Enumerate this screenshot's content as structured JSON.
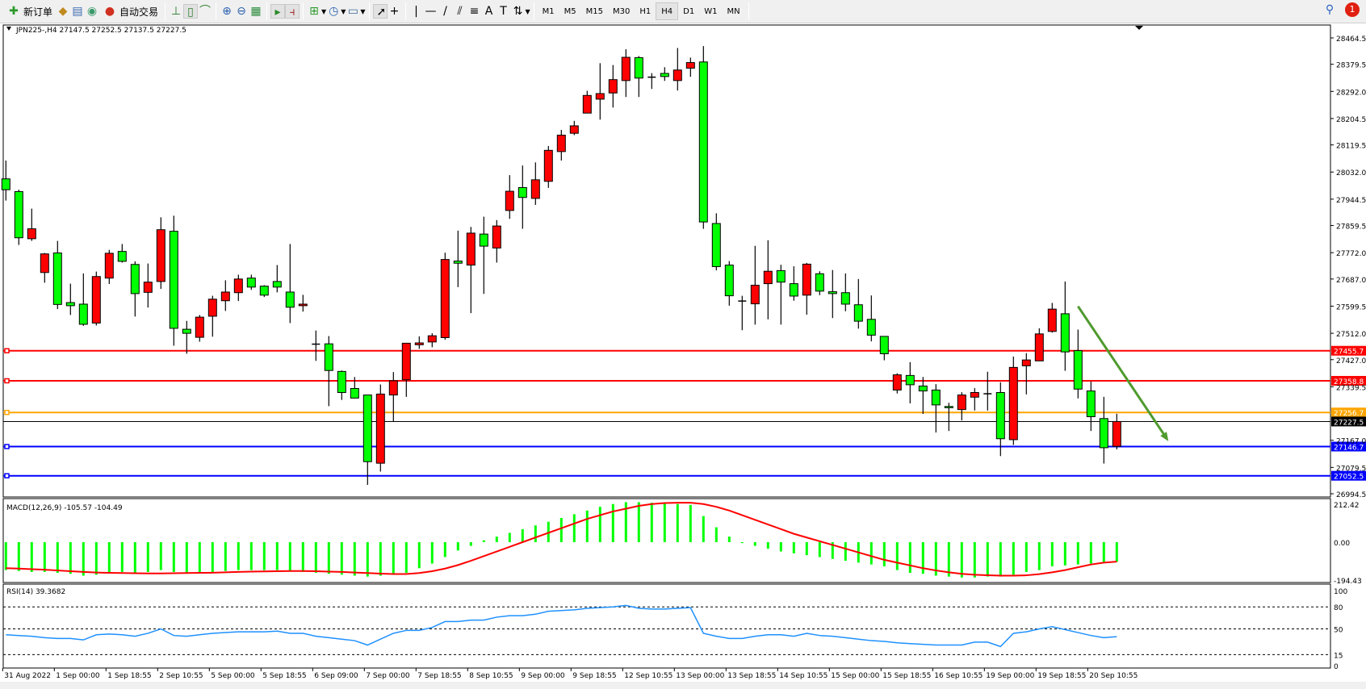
{
  "toolbar": {
    "new_order": "新订单",
    "auto_trading": "自动交易",
    "icons": [
      "new-order-icon",
      "market-watch-icon",
      "data-window-icon",
      "signals-icon",
      "auto-trading-icon",
      "bar-chart-icon",
      "candlestick-icon",
      "line-chart-icon",
      "zoom-in-icon",
      "zoom-out-icon",
      "tile-windows-icon",
      "autoscroll-icon",
      "chart-shift-icon",
      "indicators-icon",
      "periods-icon",
      "templates-icon",
      "cursor-icon",
      "crosshair-icon",
      "vertical-line-icon",
      "horizontal-line-icon",
      "trendline-icon",
      "equidistant-channel-icon",
      "fibonacci-icon",
      "text-icon",
      "text-label-icon",
      "arrows-icon"
    ],
    "timeframes": [
      "M1",
      "M5",
      "M15",
      "M30",
      "H1",
      "H4",
      "D1",
      "W1",
      "MN"
    ],
    "active_timeframe": "H4",
    "notification_count": "1"
  },
  "chart_data": {
    "type": "candlestick",
    "title": "JPN225-,H4  27147.5 27252.5 27137.5 27227.5",
    "symbol": "JPN225-",
    "timeframe": "H4",
    "ohlc_header": "27147.5 27252.5 27137.5 27227.5",
    "colors": {
      "bull": "#ff0000",
      "bear": "#00ff00",
      "background": "#ffffff"
    },
    "price_axis": {
      "range": [
        26994.5,
        28464.5
      ],
      "ticks": [
        "28464.5",
        "28379.5",
        "28292.0",
        "28204.5",
        "28119.5",
        "28032.0",
        "27944.5",
        "27859.5",
        "27772.0",
        "27687.0",
        "27599.5",
        "27512.0",
        "27427.0",
        "27339.5",
        "27167.0",
        "27079.5",
        "26994.5"
      ]
    },
    "time_labels": [
      "31 Aug 2022",
      "1 Sep 00:00",
      "1 Sep 18:55",
      "2 Sep 10:55",
      "5 Sep 00:00",
      "5 Sep 18:55",
      "6 Sep 09:00",
      "7 Sep 00:00",
      "7 Sep 18:55",
      "8 Sep 10:55",
      "9 Sep 00:00",
      "9 Sep 18:55",
      "12 Sep 10:55",
      "13 Sep 00:00",
      "13 Sep 18:55",
      "14 Sep 10:55",
      "15 Sep 00:00",
      "15 Sep 18:55",
      "16 Sep 10:55",
      "19 Sep 00:00",
      "19 Sep 18:55",
      "20 Sep 10:55"
    ],
    "candles_ohlc": [
      [
        28010,
        28069,
        27940,
        27975
      ],
      [
        27969,
        27975,
        27797,
        27820
      ],
      [
        27817,
        27914,
        27810,
        27849
      ],
      [
        27708,
        27771,
        27675,
        27768
      ],
      [
        27771,
        27810,
        27590,
        27605
      ],
      [
        27611,
        27672,
        27571,
        27601
      ],
      [
        27606,
        27705,
        27536,
        27541
      ],
      [
        27545,
        27711,
        27537,
        27695
      ],
      [
        27690,
        27781,
        27671,
        27770
      ],
      [
        27776,
        27800,
        27740,
        27744
      ],
      [
        27734,
        27744,
        27566,
        27640
      ],
      [
        27644,
        27737,
        27595,
        27677
      ],
      [
        27679,
        27886,
        27655,
        27846
      ],
      [
        27841,
        27891,
        27472,
        27528
      ],
      [
        27525,
        27552,
        27446,
        27512
      ],
      [
        27499,
        27571,
        27485,
        27564
      ],
      [
        27567,
        27633,
        27501,
        27622
      ],
      [
        27617,
        27683,
        27584,
        27645
      ],
      [
        27643,
        27701,
        27616,
        27687
      ],
      [
        27690,
        27701,
        27652,
        27661
      ],
      [
        27664,
        27667,
        27629,
        27635
      ],
      [
        27679,
        27732,
        27644,
        27661
      ],
      [
        27645,
        27800,
        27545,
        27596
      ],
      [
        27601,
        27636,
        27582,
        27606
      ],
      [
        27477,
        27521,
        27423,
        27477
      ],
      [
        27478,
        27503,
        27277,
        27392
      ],
      [
        27389,
        27392,
        27297,
        27321
      ],
      [
        27334,
        27371,
        27303,
        27303
      ],
      [
        27313,
        27313,
        27023,
        27098
      ],
      [
        27093,
        27347,
        27066,
        27316
      ],
      [
        27313,
        27387,
        27228,
        27359
      ],
      [
        27362,
        27480,
        27307,
        27480
      ],
      [
        27475,
        27502,
        27462,
        27481
      ],
      [
        27484,
        27512,
        27467,
        27504
      ],
      [
        27498,
        27772,
        27491,
        27750
      ],
      [
        27745,
        27843,
        27661,
        27738
      ],
      [
        27732,
        27855,
        27577,
        27835
      ],
      [
        27832,
        27888,
        27639,
        27793
      ],
      [
        27787,
        27877,
        27740,
        27858
      ],
      [
        27908,
        28022,
        27881,
        27970
      ],
      [
        27982,
        28053,
        27849,
        27950
      ],
      [
        27947,
        28063,
        27926,
        28007
      ],
      [
        28002,
        28116,
        27981,
        28102
      ],
      [
        28098,
        28168,
        28069,
        28151
      ],
      [
        28157,
        28197,
        28151,
        28181
      ],
      [
        28222,
        28294,
        28222,
        28279
      ],
      [
        28267,
        28383,
        28201,
        28285
      ],
      [
        28287,
        28377,
        28240,
        28330
      ],
      [
        28327,
        28428,
        28274,
        28402
      ],
      [
        28401,
        28406,
        28274,
        28335
      ],
      [
        28338,
        28351,
        28300,
        28338
      ],
      [
        28350,
        28370,
        28326,
        28340
      ],
      [
        28327,
        28432,
        28295,
        28361
      ],
      [
        28367,
        28401,
        28339,
        28385
      ],
      [
        28387,
        28438,
        27849,
        27871
      ],
      [
        27866,
        27899,
        27715,
        27727
      ],
      [
        27732,
        27745,
        27601,
        27633
      ],
      [
        27616,
        27633,
        27522,
        27616
      ],
      [
        27607,
        27794,
        27540,
        27667
      ],
      [
        27672,
        27812,
        27557,
        27712
      ],
      [
        27714,
        27733,
        27540,
        27677
      ],
      [
        27672,
        27728,
        27617,
        27632
      ],
      [
        27635,
        27739,
        27572,
        27735
      ],
      [
        27704,
        27712,
        27635,
        27648
      ],
      [
        27646,
        27716,
        27561,
        27640
      ],
      [
        27643,
        27705,
        27583,
        27606
      ],
      [
        27604,
        27687,
        27527,
        27551
      ],
      [
        27557,
        27634,
        27486,
        27506
      ],
      [
        27502,
        27502,
        27425,
        27446
      ],
      [
        27329,
        27383,
        27318,
        27378
      ],
      [
        27376,
        27419,
        27286,
        27346
      ],
      [
        27342,
        27371,
        27252,
        27326
      ],
      [
        27329,
        27348,
        27192,
        27281
      ],
      [
        27276,
        27288,
        27197,
        27272
      ],
      [
        27266,
        27322,
        27231,
        27313
      ],
      [
        27306,
        27335,
        27263,
        27321
      ],
      [
        27317,
        27388,
        27263,
        27317
      ],
      [
        27321,
        27354,
        27116,
        27172
      ],
      [
        27169,
        27437,
        27152,
        27402
      ],
      [
        27407,
        27448,
        27315,
        27426
      ],
      [
        27423,
        27528,
        27423,
        27510
      ],
      [
        27518,
        27610,
        27514,
        27590
      ],
      [
        27575,
        27679,
        27391,
        27452
      ],
      [
        27456,
        27524,
        27302,
        27332
      ],
      [
        27326,
        27356,
        27197,
        27243
      ],
      [
        27237,
        27307,
        27092,
        27143
      ],
      [
        27147.5,
        27252.5,
        27137.5,
        27227.5
      ]
    ],
    "horizontal_lines": [
      {
        "price": 27455.7,
        "label": "27455.7",
        "color": "#ff0000"
      },
      {
        "price": 27358.8,
        "label": "27358.8",
        "color": "#ff0000"
      },
      {
        "price": 27256.7,
        "label": "27256.7",
        "color": "#ffa500"
      },
      {
        "price": 27227.5,
        "label": "27227.5",
        "color": "#000000"
      },
      {
        "price": 27146.7,
        "label": "27146.7",
        "color": "#0000ff"
      },
      {
        "price": 27052.5,
        "label": "27052.5",
        "color": "#0000ff"
      }
    ],
    "trend_arrow": {
      "color": "#4f9a2e",
      "from": {
        "candle": 83,
        "price": 27599
      },
      "to": {
        "candle": 90,
        "price": 27164
      }
    },
    "macd": {
      "label": "MACD(12,26,9) -105.57 -104.49",
      "axis_ticks": [
        "212.42",
        "0.00",
        "-194.43"
      ],
      "range": [
        -194.43,
        212.42
      ],
      "histogram": [
        -150,
        -155,
        -160,
        -160,
        -165,
        -170,
        -180,
        -175,
        -165,
        -160,
        -165,
        -160,
        -150,
        -160,
        -165,
        -165,
        -160,
        -155,
        -150,
        -150,
        -150,
        -150,
        -155,
        -160,
        -165,
        -170,
        -175,
        -180,
        -185,
        -180,
        -175,
        -165,
        -140,
        -115,
        -80,
        -45,
        -20,
        10,
        30,
        50,
        70,
        90,
        110,
        130,
        150,
        170,
        190,
        205,
        215,
        215,
        212,
        208,
        205,
        200,
        140,
        80,
        30,
        -5,
        -20,
        -35,
        -50,
        -60,
        -70,
        -80,
        -90,
        -100,
        -110,
        -120,
        -130,
        -150,
        -165,
        -170,
        -180,
        -185,
        -190,
        -190,
        -185,
        -185,
        -175,
        -160,
        -150,
        -130,
        -125,
        -120,
        -115,
        -110,
        -105.57
      ],
      "signal": [
        -140,
        -142,
        -145,
        -148,
        -152,
        -156,
        -160,
        -163,
        -165,
        -166,
        -167,
        -168,
        -168,
        -167,
        -166,
        -165,
        -164,
        -162,
        -160,
        -158,
        -157,
        -156,
        -155,
        -155,
        -156,
        -158,
        -160,
        -163,
        -166,
        -169,
        -171,
        -171,
        -166,
        -156,
        -142,
        -123,
        -100,
        -75,
        -50,
        -25,
        0,
        25,
        50,
        75,
        100,
        125,
        145,
        165,
        180,
        195,
        205,
        210,
        212,
        212,
        205,
        190,
        170,
        145,
        120,
        95,
        70,
        45,
        25,
        5,
        -15,
        -35,
        -55,
        -75,
        -95,
        -110,
        -125,
        -140,
        -152,
        -162,
        -170,
        -175,
        -178,
        -180,
        -180,
        -178,
        -172,
        -162,
        -150,
        -135,
        -120,
        -110,
        -104.49
      ],
      "colors": {
        "histogram": "#00ff00",
        "signal": "#ff0000"
      }
    },
    "rsi": {
      "label": "RSI(14) 39.3682",
      "axis_ticks": [
        "100",
        "80",
        "50",
        "15",
        "0"
      ],
      "levels": [
        80,
        50,
        15
      ],
      "range": [
        0,
        100
      ],
      "values": [
        42,
        41,
        40,
        38,
        37,
        37,
        35,
        42,
        43,
        42,
        40,
        44,
        50,
        41,
        40,
        42,
        44,
        45,
        46,
        46,
        46,
        47,
        44,
        44,
        40,
        38,
        36,
        34,
        28,
        36,
        44,
        48,
        48,
        52,
        60,
        60,
        62,
        62,
        66,
        68,
        68,
        70,
        74,
        75,
        76,
        78,
        79,
        80,
        82,
        78,
        77,
        77,
        78,
        79,
        44,
        40,
        37,
        37,
        40,
        42,
        42,
        40,
        44,
        41,
        40,
        38,
        36,
        34,
        33,
        31,
        30,
        29,
        28,
        28,
        28,
        32,
        32,
        26,
        44,
        46,
        50,
        53,
        49,
        45,
        41,
        38,
        39.3682
      ],
      "color": "#1e90ff"
    }
  }
}
